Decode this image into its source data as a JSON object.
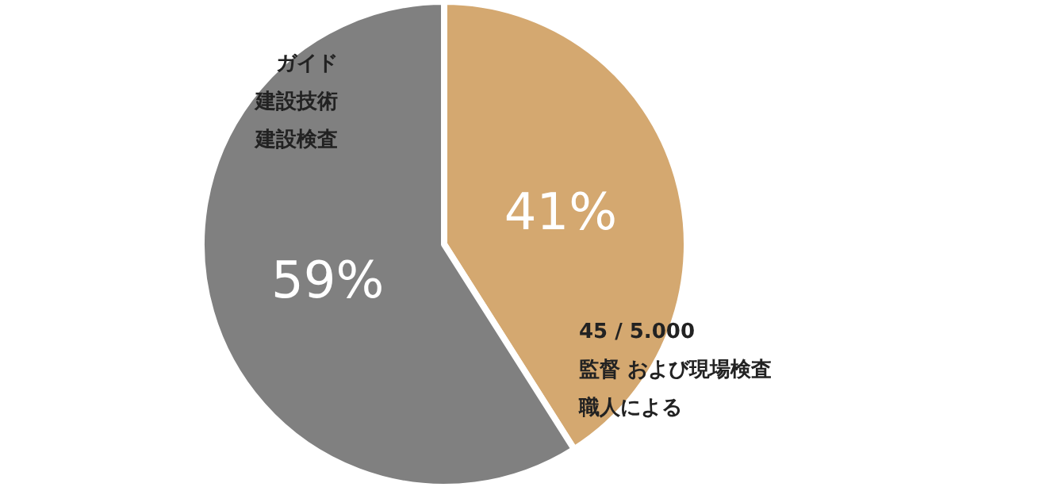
{
  "chart_data": {
    "type": "pie",
    "categories": [
      null,
      null
    ],
    "values": [
      41,
      59
    ],
    "value_labels": [
      "41%",
      "59%"
    ],
    "colors": [
      "#d4a870",
      "#808080"
    ],
    "annotations": [
      "45 / 5.000",
      "監督 および現場検査",
      "職人による",
      "ガイド",
      "建設技術",
      "建設検査"
    ]
  }
}
